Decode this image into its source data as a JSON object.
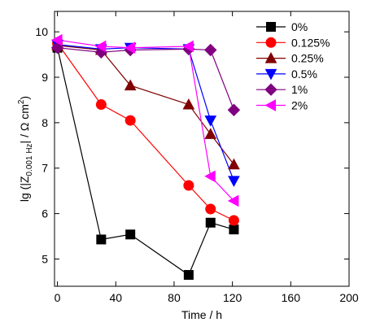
{
  "chart_data": {
    "type": "line",
    "xlabel": "Time / h",
    "ylabel": {
      "prefix": "lg (|Z",
      "subscript": "0.001 Hz",
      "middle": "| / Ω cm",
      "superscript": "2",
      "suffix": ")"
    },
    "xlim": [
      -2,
      200
    ],
    "ylim": [
      4.4,
      10.45
    ],
    "xticks": [
      0,
      40,
      80,
      120,
      160,
      200
    ],
    "yticks": [
      5,
      6,
      7,
      8,
      9,
      10
    ],
    "legend_position": "top-right",
    "series": [
      {
        "name": "0%",
        "color": "#000000",
        "marker": "square",
        "x": [
          0,
          30,
          50,
          90,
          105,
          121
        ],
        "y": [
          9.65,
          5.43,
          5.54,
          4.65,
          5.8,
          5.65
        ]
      },
      {
        "name": "0.125%",
        "color": "#ff0000",
        "marker": "circle",
        "x": [
          0,
          30,
          50,
          90,
          105,
          121
        ],
        "y": [
          9.75,
          8.4,
          8.05,
          6.62,
          6.1,
          5.85
        ]
      },
      {
        "name": "0.25%",
        "color": "#800000",
        "marker": "triangle-up",
        "x": [
          0,
          30,
          50,
          90,
          105,
          121
        ],
        "y": [
          9.7,
          9.6,
          8.82,
          8.4,
          7.75,
          7.08
        ]
      },
      {
        "name": "0.5%",
        "color": "#0000ff",
        "marker": "triangle-down",
        "x": [
          0,
          30,
          50,
          90,
          105,
          121
        ],
        "y": [
          9.72,
          9.62,
          9.65,
          9.62,
          8.05,
          6.72
        ]
      },
      {
        "name": "1%",
        "color": "#800080",
        "marker": "diamond",
        "x": [
          0,
          30,
          50,
          90,
          105,
          121
        ],
        "y": [
          9.65,
          9.55,
          9.6,
          9.62,
          9.6,
          8.28
        ]
      },
      {
        "name": "2%",
        "color": "#ff00ff",
        "marker": "triangle-left",
        "x": [
          0,
          30,
          50,
          90,
          105,
          121
        ],
        "y": [
          9.82,
          9.68,
          9.65,
          9.68,
          6.82,
          6.28
        ]
      }
    ]
  }
}
